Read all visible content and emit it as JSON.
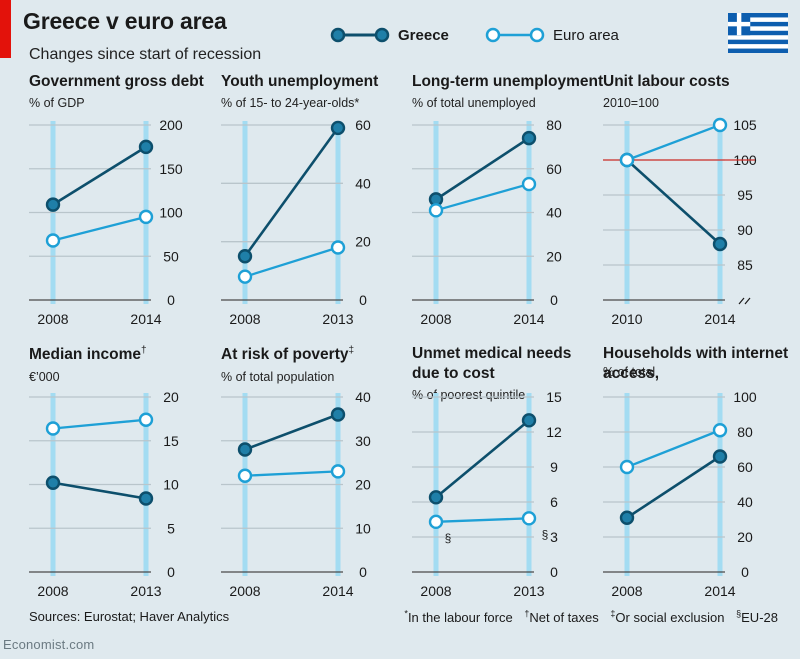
{
  "header": {
    "title": "Greece v euro area",
    "subtitle": "Changes since start of recession"
  },
  "legend": {
    "greece": "Greece",
    "euro": "Euro area"
  },
  "colors": {
    "greece": "#0d4f6c",
    "greece_fill": "#1f7fa8",
    "euro": "#1ea0d6",
    "euro_fill": "#ffffff",
    "gridline": "#b9c5cb",
    "year_line": "#a3dcf2",
    "reference": "#d0302b",
    "accent_red": "#e3120b"
  },
  "chart_data": [
    {
      "type": "line",
      "title": "Government gross debt",
      "subtitle": "% of GDP",
      "categories": [
        "2008",
        "2014"
      ],
      "series": [
        {
          "name": "Greece",
          "values": [
            109,
            175
          ]
        },
        {
          "name": "Euro area",
          "values": [
            68,
            95
          ]
        }
      ],
      "ylim": [
        0,
        200
      ],
      "yticks": [
        "0",
        "50",
        "100",
        "150",
        "200"
      ],
      "ytick_values": [
        0,
        50,
        100,
        150,
        200
      ],
      "grid": true
    },
    {
      "type": "line",
      "title": "Youth unemployment",
      "subtitle": "% of 15- to 24-year-olds*",
      "categories": [
        "2008",
        "2013"
      ],
      "series": [
        {
          "name": "Greece",
          "values": [
            15,
            59
          ]
        },
        {
          "name": "Euro area",
          "values": [
            8,
            18
          ]
        }
      ],
      "ylim": [
        0,
        60
      ],
      "yticks": [
        "0",
        "20",
        "40",
        "60"
      ],
      "ytick_values": [
        0,
        20,
        40,
        60
      ],
      "grid": true
    },
    {
      "type": "line",
      "title": "Long-term unemployment",
      "subtitle": "% of total unemployed",
      "categories": [
        "2008",
        "2014"
      ],
      "series": [
        {
          "name": "Greece",
          "values": [
            46,
            74
          ]
        },
        {
          "name": "Euro area",
          "values": [
            41,
            53
          ]
        }
      ],
      "ylim": [
        0,
        80
      ],
      "yticks": [
        "0",
        "20",
        "40",
        "60",
        "80"
      ],
      "ytick_values": [
        0,
        20,
        40,
        60,
        80
      ],
      "grid": true
    },
    {
      "type": "line",
      "title": "Unit labour costs",
      "subtitle": "2010=100",
      "categories": [
        "2010",
        "2014"
      ],
      "series": [
        {
          "name": "Greece",
          "values": [
            100,
            88
          ]
        },
        {
          "name": "Euro area",
          "values": [
            100,
            105
          ]
        }
      ],
      "ylim": [
        80,
        105
      ],
      "yticks": [
        "85",
        "90",
        "95",
        "100",
        "105"
      ],
      "ytick_values": [
        85,
        90,
        95,
        100,
        105
      ],
      "reference_line": 100,
      "axis_break": true,
      "grid": true
    },
    {
      "type": "line",
      "title": "Median income",
      "title_mark": "†",
      "subtitle": "€’000",
      "categories": [
        "2008",
        "2013"
      ],
      "series": [
        {
          "name": "Greece",
          "values": [
            10.2,
            8.4
          ]
        },
        {
          "name": "Euro area",
          "values": [
            16.4,
            17.4
          ]
        }
      ],
      "ylim": [
        0,
        20
      ],
      "yticks": [
        "0",
        "5",
        "10",
        "15",
        "20"
      ],
      "ytick_values": [
        0,
        5,
        10,
        15,
        20
      ],
      "grid": true
    },
    {
      "type": "line",
      "title": "At risk of poverty",
      "title_mark": "‡",
      "subtitle": "% of total population",
      "categories": [
        "2008",
        "2014"
      ],
      "series": [
        {
          "name": "Greece",
          "values": [
            28,
            36
          ]
        },
        {
          "name": "Euro area",
          "values": [
            22,
            23
          ]
        }
      ],
      "ylim": [
        0,
        40
      ],
      "yticks": [
        "0",
        "10",
        "20",
        "30",
        "40"
      ],
      "ytick_values": [
        0,
        10,
        20,
        30,
        40
      ],
      "grid": true
    },
    {
      "type": "line",
      "title": "Unmet medical needs",
      "title2": "due to cost",
      "subtitle": "% of poorest quintile",
      "categories": [
        "2008",
        "2013"
      ],
      "series": [
        {
          "name": "Greece",
          "values": [
            6.4,
            13.0
          ]
        },
        {
          "name": "Euro area",
          "values": [
            4.3,
            4.6
          ]
        }
      ],
      "ylim": [
        0,
        15
      ],
      "yticks": [
        "0",
        "3",
        "6",
        "9",
        "12",
        "15"
      ],
      "ytick_values": [
        0,
        3,
        6,
        9,
        12,
        15
      ],
      "markers": [
        "§",
        "§"
      ],
      "grid": true
    },
    {
      "type": "line",
      "title": "Households with internet",
      "title2": "access,",
      "subtitle": "% of total",
      "categories": [
        "2008",
        "2014"
      ],
      "series": [
        {
          "name": "Greece",
          "values": [
            31,
            66
          ]
        },
        {
          "name": "Euro area",
          "values": [
            60,
            81
          ]
        }
      ],
      "ylim": [
        0,
        100
      ],
      "yticks": [
        "0",
        "20",
        "40",
        "60",
        "80",
        "100"
      ],
      "ytick_values": [
        0,
        20,
        40,
        60,
        80,
        100
      ],
      "grid": true
    }
  ],
  "footer": {
    "sources": "Sources: Eurostat; Haver Analytics",
    "note1_mark": "*",
    "note1": "In the labour force",
    "note2_mark": "†",
    "note2": "Net of taxes",
    "note3_mark": "‡",
    "note3": "Or social exclusion",
    "note4_mark": "§",
    "note4": "EU-28",
    "brand": "Economist.com"
  }
}
